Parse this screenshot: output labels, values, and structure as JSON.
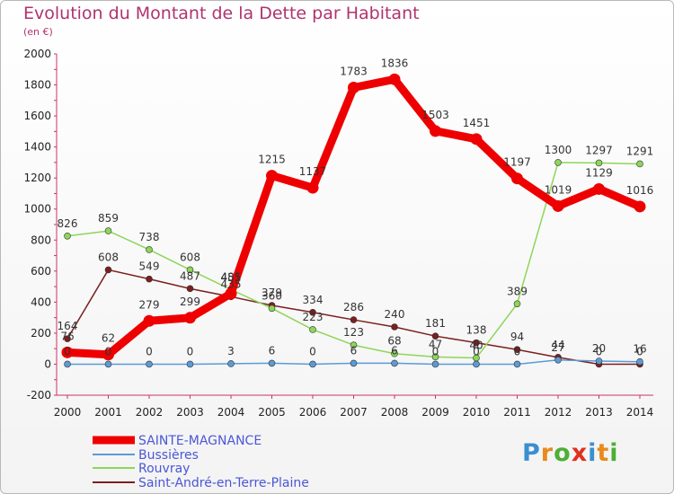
{
  "header": {
    "title": "Evolution du Montant de la Dette par Habitant",
    "subtitle": "(en €)"
  },
  "logo_text": "Proxiti",
  "chart_data": {
    "type": "line",
    "x": [
      "2000",
      "2001",
      "2002",
      "2003",
      "2004",
      "2005",
      "2006",
      "2007",
      "2008",
      "2009",
      "2010",
      "2011",
      "2012",
      "2013",
      "2014"
    ],
    "ylim": [
      -200,
      2000
    ],
    "yticks": [
      -200,
      0,
      200,
      400,
      600,
      800,
      1000,
      1200,
      1400,
      1600,
      1800,
      2000
    ],
    "grid": false,
    "legend_position": "bottom-left",
    "series": [
      {
        "name": "SAINTE-MAGNANCE",
        "color": "#ee0000",
        "values": [
          76,
          62,
          279,
          299,
          455,
          1215,
          1137,
          1783,
          1836,
          1503,
          1451,
          1197,
          1019,
          1129,
          1016
        ],
        "labels": [
          "76",
          "62",
          "279",
          "299",
          "455",
          "1215",
          "1137",
          "1783",
          "1836",
          "1503",
          "1451",
          "1197",
          "1019",
          "1129",
          "1016"
        ]
      },
      {
        "name": "Bussières",
        "color": "#5b9bd5",
        "values": [
          0,
          0,
          0,
          0,
          3,
          6,
          0,
          6,
          6,
          0,
          0,
          0,
          27,
          20,
          16
        ],
        "labels": [
          "0",
          "0",
          "0",
          "0",
          "3",
          "6",
          "0",
          "6",
          "6",
          "0",
          "0",
          "0",
          "27",
          "20",
          "16"
        ]
      },
      {
        "name": "Rouvray",
        "color": "#8dd65a",
        "values": [
          826,
          859,
          738,
          608,
          481,
          360,
          223,
          123,
          68,
          47,
          40,
          389,
          1300,
          1297,
          1291
        ],
        "labels": [
          "826",
          "859",
          "738",
          "608",
          "481",
          "360",
          "223",
          "123",
          "68",
          "47",
          "40",
          "389",
          "1300",
          "1297",
          "1291"
        ]
      },
      {
        "name": "Saint-André-en-Terre-Plaine",
        "color": "#7b1f1f",
        "values": [
          164,
          608,
          549,
          487,
          435,
          379,
          334,
          286,
          240,
          181,
          138,
          94,
          44,
          0,
          0
        ],
        "labels": [
          "164",
          "608",
          "549",
          "487",
          "435",
          "379",
          "334",
          "286",
          "240",
          "181",
          "138",
          "94",
          "44",
          "0",
          "0"
        ]
      }
    ]
  }
}
